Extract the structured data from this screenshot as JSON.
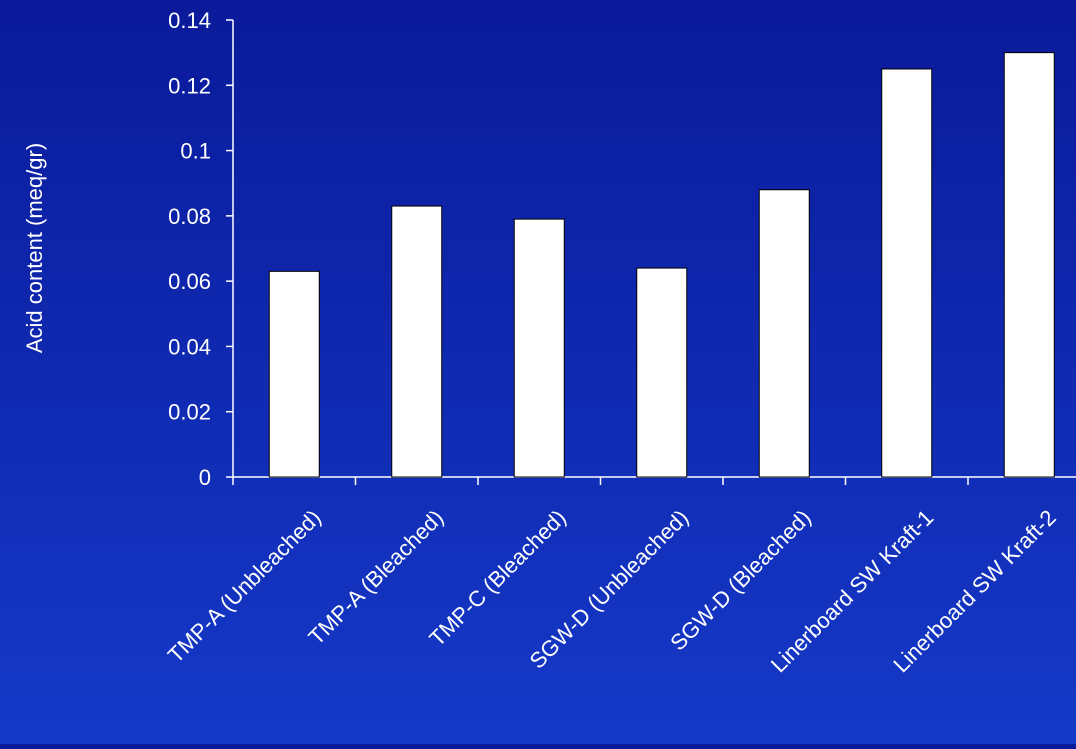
{
  "chart_data": {
    "type": "bar",
    "title": "",
    "xlabel": "",
    "ylabel": "Acid content (meq/gr)",
    "ylim": [
      0,
      0.14
    ],
    "yticks": [
      "0",
      "0.02",
      "0.04",
      "0.06",
      "0.08",
      "0.1",
      "0.12",
      "0.14"
    ],
    "ytick_values": [
      0,
      0.02,
      0.04,
      0.06,
      0.08,
      0.1,
      0.12,
      0.14
    ],
    "categories": [
      "TMP-A (Unbleached)",
      "TMP-A (Bleached)",
      "TMP-C (Bleached)",
      "SGW-D (Unbleached)",
      "SGW-D (Bleached)",
      "Linerboard SW Kraft-1",
      "Linerboard SW Kraft-2"
    ],
    "values": [
      0.063,
      0.083,
      0.079,
      0.064,
      0.088,
      0.125,
      0.13
    ],
    "grid": false,
    "legend": "none",
    "colors": {
      "background_top": "#0a1a9a",
      "background_bottom": "#1539c8",
      "bar_fill": "#ffffff",
      "bar_stroke": "#000000",
      "axis": "#ffffff",
      "text": "#ffffff"
    }
  }
}
